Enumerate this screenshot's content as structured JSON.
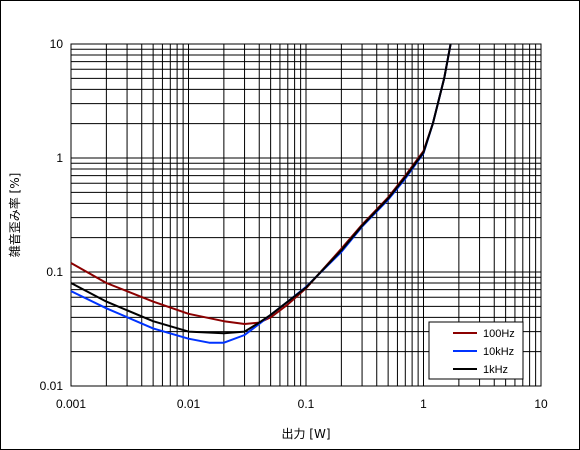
{
  "chart_data": {
    "type": "line",
    "title": "",
    "xlabel": "出力 [W]",
    "ylabel": "雑音歪み率 [%]",
    "xscale": "log",
    "yscale": "log",
    "xlim": [
      0.001,
      10
    ],
    "ylim": [
      0.01,
      10
    ],
    "x_tick_labels": [
      "0.001",
      "0.01",
      "0.1",
      "1",
      "10"
    ],
    "y_tick_labels": [
      "0.01",
      "0.1",
      "1",
      "10"
    ],
    "grid": true,
    "legend_position": "bottom-right",
    "series": [
      {
        "name": "100Hz",
        "color": "#8b0000",
        "x": [
          0.001,
          0.002,
          0.005,
          0.01,
          0.02,
          0.03,
          0.04,
          0.05,
          0.07,
          0.1,
          0.2,
          0.3,
          0.5,
          0.7,
          1.0,
          1.2,
          1.5,
          1.7
        ],
        "y": [
          0.12,
          0.08,
          0.055,
          0.043,
          0.037,
          0.035,
          0.036,
          0.04,
          0.052,
          0.072,
          0.16,
          0.26,
          0.45,
          0.7,
          1.15,
          2.0,
          5.0,
          10.0
        ]
      },
      {
        "name": "10kHz",
        "color": "#0033ff",
        "x": [
          0.001,
          0.002,
          0.005,
          0.01,
          0.015,
          0.02,
          0.03,
          0.04,
          0.05,
          0.07,
          0.1,
          0.2,
          0.3,
          0.5,
          0.7,
          1.0,
          1.2,
          1.5,
          1.7
        ],
        "y": [
          0.068,
          0.048,
          0.032,
          0.026,
          0.024,
          0.024,
          0.028,
          0.035,
          0.042,
          0.055,
          0.074,
          0.15,
          0.25,
          0.43,
          0.66,
          1.1,
          2.0,
          5.0,
          10.0
        ]
      },
      {
        "name": "1kHz",
        "color": "#000000",
        "x": [
          0.001,
          0.002,
          0.005,
          0.01,
          0.02,
          0.03,
          0.04,
          0.05,
          0.07,
          0.1,
          0.2,
          0.3,
          0.5,
          0.7,
          1.0,
          1.2,
          1.5,
          1.7
        ],
        "y": [
          0.08,
          0.055,
          0.037,
          0.03,
          0.029,
          0.03,
          0.036,
          0.042,
          0.055,
          0.073,
          0.155,
          0.255,
          0.44,
          0.68,
          1.12,
          2.0,
          5.0,
          10.0
        ]
      }
    ]
  }
}
